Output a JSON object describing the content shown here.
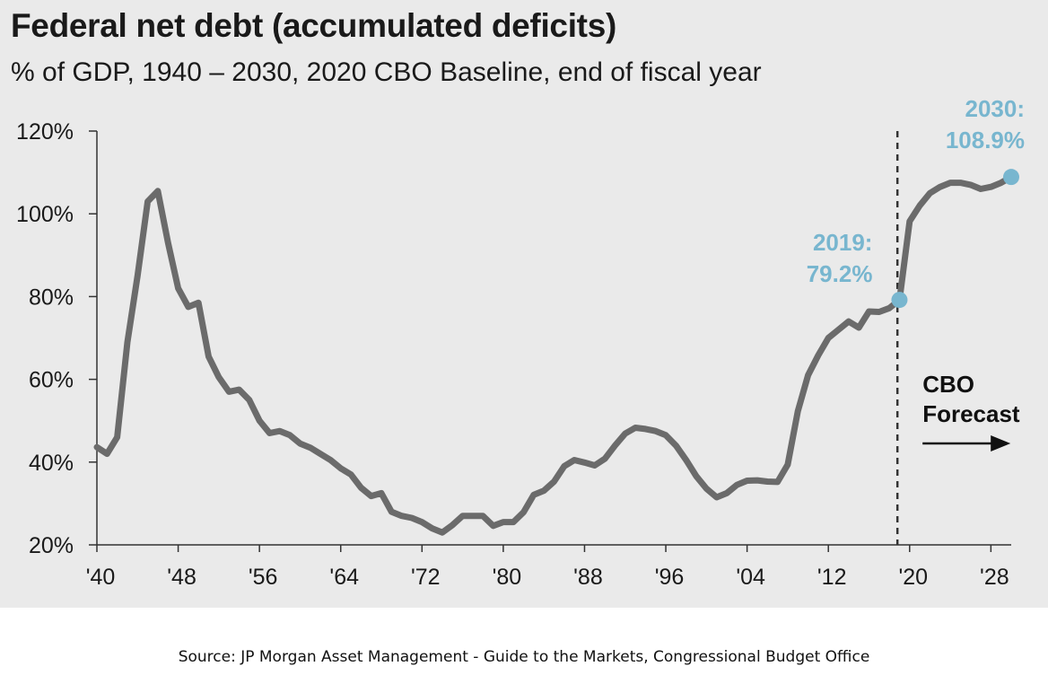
{
  "title": "Federal net debt (accumulated deficits)",
  "subtitle": "% of GDP, 1940 – 2030, 2020 CBO Baseline, end of fiscal year",
  "source": "Source:  JP Morgan Asset Management - Guide to the Markets, Congressional Budget Office",
  "colors": {
    "line": "#6b6b6b",
    "highlight": "#78b6cf",
    "background": "#eaeaea",
    "forecast_divider": "#333333"
  },
  "chart_data": {
    "type": "line",
    "title": "Federal net debt (accumulated deficits)",
    "subtitle": "% of GDP, 1940 – 2030, 2020 CBO Baseline, end of fiscal year",
    "ylim": [
      20,
      120
    ],
    "yticks": [
      20,
      40,
      60,
      80,
      100,
      120
    ],
    "ytick_labels": [
      "20%",
      "40%",
      "60%",
      "80%",
      "100%",
      "120%"
    ],
    "xlim": [
      1940,
      2030
    ],
    "xticks": [
      1940,
      1948,
      1956,
      1964,
      1972,
      1980,
      1988,
      1996,
      2004,
      2012,
      2020,
      2028
    ],
    "xtick_labels": [
      "'40",
      "'48",
      "'56",
      "'64",
      "'72",
      "'80",
      "'88",
      "'96",
      "'04",
      "'12",
      "'20",
      "'28"
    ],
    "grid": false,
    "series": [
      {
        "x": [
          1940,
          1941,
          1942,
          1943,
          1944,
          1945,
          1946,
          1947,
          1948,
          1949,
          1950,
          1951,
          1952,
          1953,
          1954,
          1955,
          1956,
          1957,
          1958,
          1959,
          1960,
          1961,
          1962,
          1963,
          1964,
          1965,
          1966,
          1967,
          1968,
          1969,
          1970,
          1971,
          1972,
          1973,
          1974,
          1975,
          1976,
          1977,
          1978,
          1979,
          1980,
          1981,
          1982,
          1983,
          1984,
          1985,
          1986,
          1987,
          1988,
          1989,
          1990,
          1991,
          1992,
          1993,
          1994,
          1995,
          1996,
          1997,
          1998,
          1999,
          2000,
          2001,
          2002,
          2003,
          2004,
          2005,
          2006,
          2007,
          2008,
          2009,
          2010,
          2011,
          2012,
          2013,
          2014,
          2015,
          2016,
          2017,
          2018,
          2019,
          2020,
          2021,
          2022,
          2023,
          2024,
          2025,
          2026,
          2027,
          2028,
          2029,
          2030
        ],
        "values": [
          43.6,
          42.0,
          46.0,
          69.0,
          85.0,
          103.0,
          105.5,
          93.0,
          82.0,
          77.5,
          78.5,
          65.5,
          60.5,
          57.0,
          57.5,
          55.0,
          50.0,
          47.0,
          47.5,
          46.5,
          44.5,
          43.5,
          42.0,
          40.5,
          38.5,
          37.0,
          33.8,
          31.8,
          32.5,
          28.0,
          27.0,
          26.5,
          25.5,
          24.0,
          23.0,
          24.8,
          27.0,
          27.0,
          27.0,
          24.6,
          25.5,
          25.5,
          27.9,
          32.1,
          33.1,
          35.3,
          39.0,
          40.5,
          39.9,
          39.2,
          40.8,
          44.0,
          46.9,
          48.3,
          48.0,
          47.5,
          46.5,
          44.0,
          40.5,
          36.6,
          33.6,
          31.5,
          32.5,
          34.5,
          35.5,
          35.6,
          35.3,
          35.2,
          39.4,
          52.3,
          61.0,
          65.8,
          70.0,
          72.0,
          74.0,
          72.5,
          76.4,
          76.3,
          77.2,
          79.2,
          98.2,
          102.0,
          105.0,
          106.5,
          107.5,
          107.5,
          107.0,
          106.0,
          106.5,
          107.5,
          108.9
        ]
      }
    ],
    "annotations": [
      {
        "x": 2019,
        "y": 79.2,
        "year_label": "2019:",
        "value_label": "79.2%"
      },
      {
        "x": 2030,
        "y": 108.9,
        "year_label": "2030:",
        "value_label": "108.9%"
      }
    ],
    "forecast": {
      "x": 2018.8,
      "label_line1": "CBO",
      "label_line2": "Forecast"
    }
  }
}
